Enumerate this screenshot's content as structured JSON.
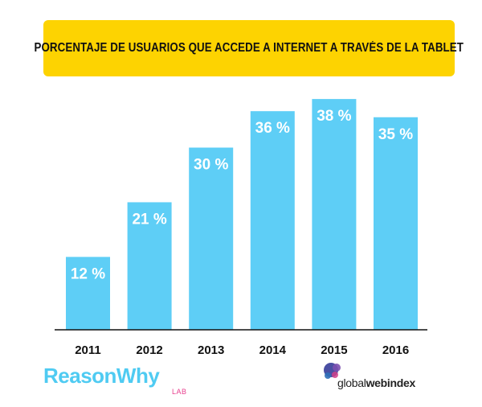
{
  "title": "PORCENTAJE DE USUARIOS QUE ACCEDE A INTERNET A TRAVÉS DE LA TABLET",
  "colors": {
    "banner": "#fdd301",
    "bar": "#5ecef6",
    "bar_label": "#ffffff",
    "axis": "#111111"
  },
  "chart_data": {
    "type": "bar",
    "title": "PORCENTAJE DE USUARIOS QUE ACCEDE A INTERNET A TRAVÉS DE LA TABLET",
    "categories": [
      "2011",
      "2012",
      "2013",
      "2014",
      "2015",
      "2016"
    ],
    "values": [
      12,
      21,
      30,
      36,
      38,
      35
    ],
    "data_labels": [
      "12 %",
      "21 %",
      "30 %",
      "36 %",
      "38 %",
      "35 %"
    ],
    "xlabel": "",
    "ylabel": "",
    "ylim": [
      0,
      40
    ],
    "grid": false,
    "legend": "none"
  },
  "logos": {
    "left_brand": "ReasonWhy",
    "left_sub": "LAB",
    "right_brand_light": "global",
    "right_brand_bold": "webindex"
  }
}
